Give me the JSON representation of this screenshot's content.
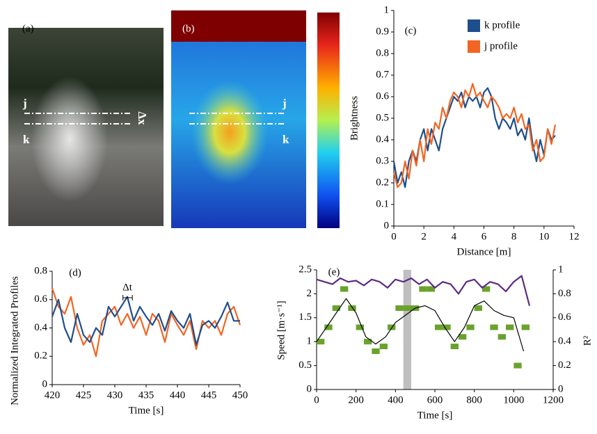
{
  "images": [
    {
      "label": "(a)",
      "markers": [
        "j",
        "k"
      ],
      "annotation": "Δx"
    },
    {
      "label": "(b)",
      "markers": [
        "j",
        "k"
      ]
    }
  ],
  "chart_data": [
    {
      "type": "line",
      "label": "(c)",
      "xlabel": "Distance [m]",
      "ylabel": "Brightness",
      "legend": "top-right",
      "xlim": [
        0,
        12
      ],
      "xticks": [
        0,
        2,
        4,
        6,
        8,
        10,
        12
      ],
      "ylim": [
        0,
        1
      ],
      "yticks": [
        0,
        0.1,
        0.2,
        0.3,
        0.4,
        0.5,
        0.6,
        0.7,
        0.8,
        0.9,
        1
      ],
      "x": [
        0,
        0.25,
        0.5,
        0.75,
        1,
        1.25,
        1.5,
        1.75,
        2,
        2.25,
        2.5,
        2.75,
        3,
        3.25,
        3.5,
        3.75,
        4,
        4.25,
        4.5,
        4.75,
        5,
        5.25,
        5.5,
        5.75,
        6,
        6.25,
        6.5,
        6.75,
        7,
        7.25,
        7.5,
        7.75,
        8,
        8.25,
        8.5,
        8.75,
        9,
        9.25,
        9.5,
        9.75,
        10,
        10.25,
        10.5,
        10.75
      ],
      "series": [
        {
          "name": "k profile",
          "color": "#1f4e8c",
          "values": [
            0.3,
            0.2,
            0.25,
            0.18,
            0.3,
            0.35,
            0.3,
            0.4,
            0.45,
            0.35,
            0.45,
            0.4,
            0.35,
            0.45,
            0.5,
            0.55,
            0.6,
            0.58,
            0.62,
            0.55,
            0.6,
            0.58,
            0.6,
            0.55,
            0.62,
            0.64,
            0.6,
            0.5,
            0.45,
            0.5,
            0.48,
            0.45,
            0.5,
            0.42,
            0.45,
            0.4,
            0.5,
            0.38,
            0.3,
            0.4,
            0.33,
            0.45,
            0.4,
            0.42
          ]
        },
        {
          "name": "j profile",
          "color": "#f26522",
          "values": [
            0.25,
            0.18,
            0.2,
            0.3,
            0.22,
            0.35,
            0.28,
            0.4,
            0.3,
            0.45,
            0.38,
            0.48,
            0.45,
            0.55,
            0.5,
            0.58,
            0.62,
            0.6,
            0.55,
            0.63,
            0.6,
            0.66,
            0.6,
            0.62,
            0.58,
            0.55,
            0.6,
            0.58,
            0.55,
            0.5,
            0.52,
            0.5,
            0.55,
            0.48,
            0.52,
            0.45,
            0.47,
            0.35,
            0.4,
            0.3,
            0.32,
            0.45,
            0.38,
            0.47
          ]
        }
      ]
    },
    {
      "type": "line",
      "label": "(d)",
      "xlabel": "Time [s]",
      "ylabel": "Normalized Integrated Profiles",
      "annotation": "Δt",
      "xlim": [
        420,
        450
      ],
      "xticks": [
        420,
        425,
        430,
        435,
        440,
        445,
        450
      ],
      "ylim": [
        0,
        0.8
      ],
      "yticks": [
        0,
        0.2,
        0.4,
        0.6,
        0.8
      ],
      "x": [
        420,
        421,
        422,
        423,
        424,
        425,
        426,
        427,
        428,
        429,
        430,
        431,
        432,
        433,
        434,
        435,
        436,
        437,
        438,
        439,
        440,
        441,
        442,
        443,
        444,
        445,
        446,
        447,
        448,
        449,
        450
      ],
      "series": [
        {
          "color": "#f26522",
          "values": [
            0.68,
            0.55,
            0.5,
            0.62,
            0.4,
            0.28,
            0.35,
            0.2,
            0.45,
            0.5,
            0.55,
            0.42,
            0.5,
            0.4,
            0.48,
            0.35,
            0.5,
            0.45,
            0.3,
            0.5,
            0.42,
            0.35,
            0.45,
            0.25,
            0.45,
            0.4,
            0.45,
            0.35,
            0.5,
            0.55,
            0.42
          ]
        },
        {
          "color": "#1f4e8c",
          "values": [
            0.48,
            0.6,
            0.4,
            0.3,
            0.5,
            0.35,
            0.3,
            0.4,
            0.35,
            0.55,
            0.48,
            0.55,
            0.62,
            0.45,
            0.55,
            0.48,
            0.42,
            0.5,
            0.38,
            0.52,
            0.45,
            0.4,
            0.5,
            0.28,
            0.42,
            0.45,
            0.4,
            0.48,
            0.58,
            0.45,
            0.45
          ]
        }
      ]
    },
    {
      "type": "line",
      "label": "(e)",
      "xlabel": "Time [s]",
      "ylabel": "Speed [m·s⁻¹]",
      "y2label": "R²",
      "xlim": [
        0,
        1200
      ],
      "xticks": [
        0,
        200,
        400,
        600,
        800,
        1000,
        1200
      ],
      "ylim": [
        0,
        2.5
      ],
      "yticks": [
        0,
        0.5,
        1,
        1.5,
        2,
        2.5
      ],
      "y2lim": [
        0,
        1
      ],
      "y2ticks": [
        0,
        0.2,
        0.4,
        0.6,
        0.8,
        1
      ],
      "highlight": [
        440,
        480
      ],
      "highlight_color": "#bfbfbf",
      "series": [
        {
          "type": "dash",
          "color": "#6aa22c",
          "x": [
            20,
            60,
            100,
            140,
            180,
            220,
            260,
            300,
            340,
            380,
            420,
            460,
            500,
            540,
            580,
            620,
            660,
            700,
            740,
            780,
            820,
            860,
            900,
            940,
            980,
            1020,
            1060
          ],
          "values": [
            1.0,
            1.3,
            1.7,
            2.1,
            1.7,
            1.3,
            1.0,
            0.8,
            0.9,
            1.3,
            1.7,
            1.7,
            1.7,
            2.1,
            2.1,
            1.3,
            1.3,
            0.9,
            1.1,
            1.3,
            1.7,
            2.1,
            1.3,
            1.1,
            1.3,
            0.5,
            1.3
          ]
        },
        {
          "type": "line",
          "color": "#000000",
          "x": [
            0,
            50,
            100,
            150,
            200,
            250,
            300,
            350,
            400,
            450,
            500,
            550,
            600,
            650,
            700,
            750,
            800,
            850,
            900,
            950,
            1000,
            1050
          ],
          "values": [
            1.0,
            1.3,
            1.6,
            1.9,
            1.6,
            1.1,
            0.95,
            1.1,
            1.4,
            1.55,
            1.7,
            1.75,
            1.65,
            1.3,
            1.0,
            1.3,
            1.75,
            1.85,
            1.65,
            1.55,
            1.5,
            0.8
          ]
        },
        {
          "type": "line",
          "color": "#5b2a86",
          "axis": "y2",
          "x": [
            0,
            40,
            80,
            120,
            160,
            200,
            240,
            280,
            320,
            360,
            400,
            440,
            480,
            520,
            560,
            600,
            640,
            680,
            720,
            760,
            800,
            840,
            880,
            920,
            960,
            1000,
            1040,
            1080
          ],
          "values": [
            0.92,
            0.9,
            0.88,
            0.93,
            0.9,
            0.91,
            0.87,
            0.92,
            0.9,
            0.85,
            0.92,
            0.9,
            0.93,
            0.88,
            0.92,
            0.85,
            0.9,
            0.88,
            0.8,
            0.9,
            0.92,
            0.85,
            0.9,
            0.88,
            0.82,
            0.9,
            0.95,
            0.7
          ]
        }
      ]
    }
  ]
}
